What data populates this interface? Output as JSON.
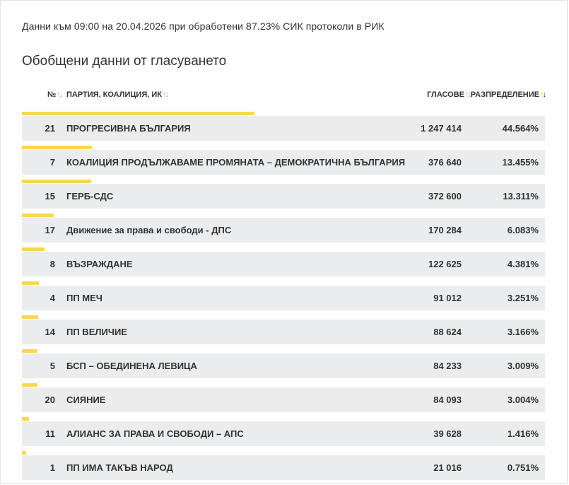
{
  "meta_text": "Данни към 09:00 на 20.04.2026 при обработени 87.23% СИК протоколи в РИК",
  "title": "Обобщени данни от гласуването",
  "header": {
    "num": "№",
    "party": "ПАРТИЯ, КОАЛИЦИЯ, ИК",
    "votes": "ГЛАСОВЕ",
    "share": "РАЗПРЕДЕЛЕНИЕ"
  },
  "colors": {
    "bar": "#fbd751",
    "row_bg": "#ebeced",
    "sort_active": "#f2c300"
  },
  "rows": [
    {
      "num": "21",
      "party": "ПРОГРЕСИВНА БЪЛГАРИЯ",
      "votes": "1 247 414",
      "share": "44.564%",
      "share_value": 44.564
    },
    {
      "num": "7",
      "party": "КОАЛИЦИЯ ПРОДЪЛЖАВАМЕ ПРОМЯНАТА – ДЕМОКРАТИЧНА БЪЛГАРИЯ",
      "votes": "376 640",
      "share": "13.455%",
      "share_value": 13.455
    },
    {
      "num": "15",
      "party": "ГЕРБ-СДС",
      "votes": "372 600",
      "share": "13.311%",
      "share_value": 13.311
    },
    {
      "num": "17",
      "party": "Движение за права и свободи - ДПС",
      "votes": "170 284",
      "share": "6.083%",
      "share_value": 6.083
    },
    {
      "num": "8",
      "party": "ВЪЗРАЖДАНЕ",
      "votes": "122 625",
      "share": "4.381%",
      "share_value": 4.381
    },
    {
      "num": "4",
      "party": "ПП МЕЧ",
      "votes": "91 012",
      "share": "3.251%",
      "share_value": 3.251
    },
    {
      "num": "14",
      "party": "ПП ВЕЛИЧИЕ",
      "votes": "88 624",
      "share": "3.166%",
      "share_value": 3.166
    },
    {
      "num": "5",
      "party": "БСП – ОБЕДИНЕНА ЛЕВИЦА",
      "votes": "84 233",
      "share": "3.009%",
      "share_value": 3.009
    },
    {
      "num": "20",
      "party": "СИЯНИЕ",
      "votes": "84 093",
      "share": "3.004%",
      "share_value": 3.004
    },
    {
      "num": "11",
      "party": "АЛИАНС ЗА ПРАВА И СВОБОДИ – АПС",
      "votes": "39 628",
      "share": "1.416%",
      "share_value": 1.416
    },
    {
      "num": "1",
      "party": "ПП ИМА ТАКЪВ НАРОД",
      "votes": "21 016",
      "share": "0.751%",
      "share_value": 0.751
    }
  ]
}
